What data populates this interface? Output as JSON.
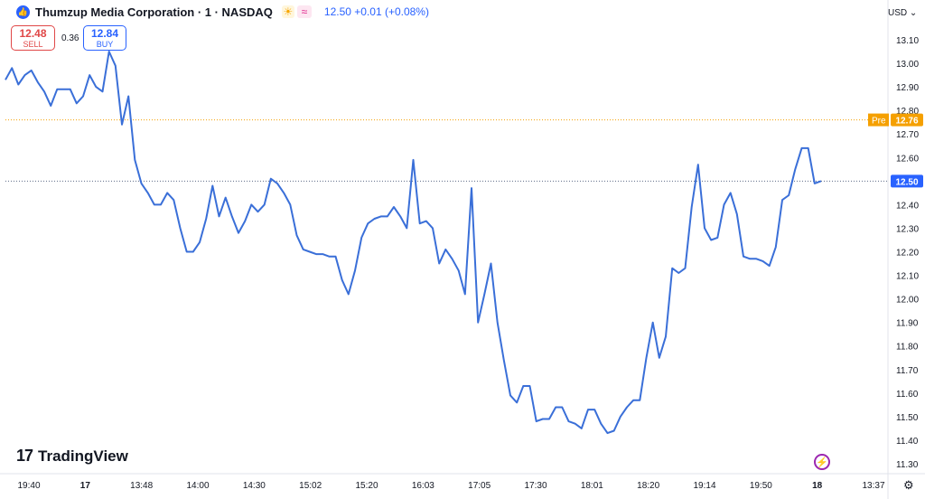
{
  "header": {
    "logo_glyph": "👍",
    "symbol_title": "Thumzup Media Corporation · 1 · NASDAQ",
    "sun_glyph": "☀",
    "wave_glyph": "≈",
    "last_quote": "12.50  +0.01 (+0.08%)"
  },
  "trade": {
    "sell_price": "12.48",
    "sell_label": "SELL",
    "spread": "0.36",
    "buy_price": "12.84",
    "buy_label": "BUY"
  },
  "currency": "USD ⌄",
  "watermark": {
    "mark": "17",
    "text": "TradingView"
  },
  "icons": {
    "bolt": "⚡",
    "settings": "⚙"
  },
  "colors": {
    "line": "#3a6fd8",
    "pre_marker": "#f5a000",
    "last_marker": "#2962ff"
  },
  "chart_data": {
    "type": "line",
    "x_tick_labels": [
      "19:40",
      "17",
      "13:48",
      "14:00",
      "14:30",
      "15:02",
      "15:20",
      "16:03",
      "17:05",
      "17:30",
      "18:01",
      "18:20",
      "19:14",
      "19:50",
      "18",
      "13:37"
    ],
    "y_tick_labels": [
      "13.10",
      "13.00",
      "12.90",
      "12.80",
      "12.70",
      "12.60",
      "12.50",
      "12.40",
      "12.30",
      "12.20",
      "12.10",
      "12.00",
      "11.90",
      "11.80",
      "11.70",
      "11.60",
      "11.50",
      "11.40",
      "11.30"
    ],
    "ylim": [
      11.3,
      13.1
    ],
    "grid": false,
    "series": [
      {
        "values": [
          12.93,
          12.98,
          12.91,
          12.95,
          12.97,
          12.92,
          12.88,
          12.82,
          12.89,
          12.89,
          12.89,
          12.83,
          12.86,
          12.95,
          12.9,
          12.88,
          13.05,
          12.99,
          12.74,
          12.86,
          12.59,
          12.49,
          12.45,
          12.4,
          12.4,
          12.45,
          12.42,
          12.3,
          12.2,
          12.2,
          12.24,
          12.34,
          12.48,
          12.35,
          12.43,
          12.35,
          12.28,
          12.33,
          12.4,
          12.37,
          12.4,
          12.51,
          12.49,
          12.45,
          12.4,
          12.27,
          12.21,
          12.2,
          12.19,
          12.19,
          12.18,
          12.18,
          12.08,
          12.02,
          12.12,
          12.26,
          12.32,
          12.34,
          12.35,
          12.35,
          12.39,
          12.35,
          12.3,
          12.59,
          12.32,
          12.33,
          12.3,
          12.15,
          12.21,
          12.17,
          12.12,
          12.02,
          12.47,
          11.9,
          12.02,
          12.15,
          11.9,
          11.74,
          11.59,
          11.56,
          11.63,
          11.63,
          11.48,
          11.49,
          11.49,
          11.54,
          11.54,
          11.48,
          11.47,
          11.45,
          11.53,
          11.53,
          11.47,
          11.43,
          11.44,
          11.5,
          11.54,
          11.57,
          11.57,
          11.75,
          11.9,
          11.75,
          11.84,
          12.13,
          12.11,
          12.13,
          12.39,
          12.57,
          12.3,
          12.25,
          12.26,
          12.4,
          12.45,
          12.36,
          12.18,
          12.17,
          12.17,
          12.16,
          12.14,
          12.22,
          12.42,
          12.44,
          12.55,
          12.64,
          12.64,
          12.49,
          12.5
        ]
      }
    ],
    "price_lines": [
      {
        "label": "Pre",
        "value": "12.76"
      },
      {
        "label": "",
        "value": "12.50"
      }
    ]
  }
}
